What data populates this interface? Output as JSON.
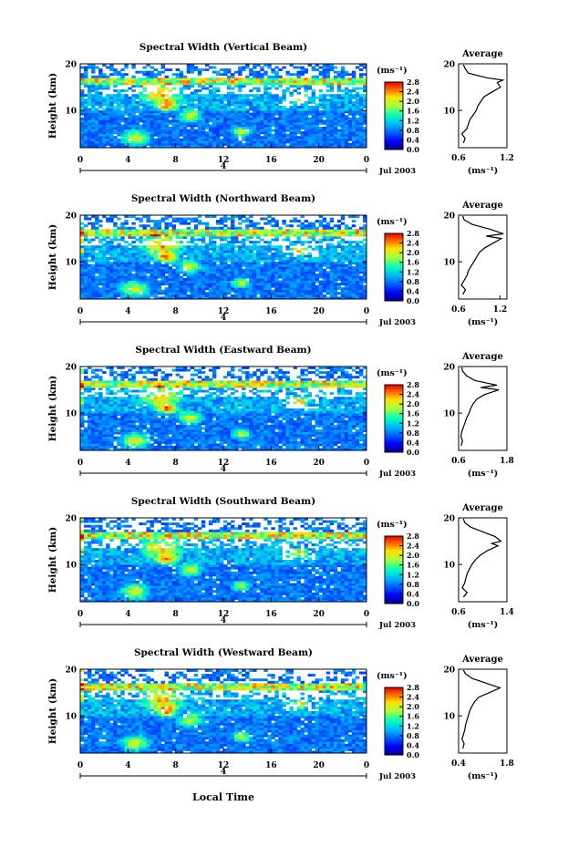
{
  "figure": {
    "xlabel": "Local Time",
    "date_label": "Jul 2003",
    "day_label": "4",
    "colorbar_unit": "(ms⁻¹)",
    "profile_title": "Average",
    "ylabel": "Height (km)"
  },
  "chart_data": [
    {
      "type": "heatmap",
      "title": "Spectral Width (Vertical Beam)",
      "xlabel": "Local Time",
      "ylabel": "Height (km)",
      "xlim": [
        0,
        24
      ],
      "ylim": [
        2,
        20
      ],
      "xticks": [
        "0",
        "4",
        "8",
        "12",
        "16",
        "20",
        "0"
      ],
      "yticks": [
        "10",
        "20"
      ],
      "colorbar": {
        "unit": "(ms⁻¹)",
        "ticks": [
          "0.0",
          "0.4",
          "0.8",
          "1.2",
          "1.6",
          "2.0",
          "2.4",
          "2.8"
        ],
        "range": [
          0,
          2.8
        ]
      },
      "profile": {
        "title": "Average",
        "xlabel": "(ms⁻¹)",
        "xlim": [
          0.6,
          1.2
        ],
        "xticks": [
          "0.6",
          "1.2"
        ],
        "points": [
          [
            0.66,
            3
          ],
          [
            0.68,
            4
          ],
          [
            0.64,
            5
          ],
          [
            0.7,
            6
          ],
          [
            0.72,
            7
          ],
          [
            0.74,
            8
          ],
          [
            0.78,
            9
          ],
          [
            0.82,
            10
          ],
          [
            0.84,
            11
          ],
          [
            0.88,
            12
          ],
          [
            0.92,
            13
          ],
          [
            1.02,
            14
          ],
          [
            1.12,
            15
          ],
          [
            1.08,
            16
          ],
          [
            1.15,
            16.5
          ],
          [
            0.95,
            17
          ],
          [
            0.72,
            18
          ],
          [
            0.68,
            19
          ],
          [
            0.66,
            19.8
          ]
        ]
      }
    },
    {
      "type": "heatmap",
      "title": "Spectral Width (Northward Beam)",
      "xlabel": "Local Time",
      "ylabel": "Height (km)",
      "xlim": [
        0,
        24
      ],
      "ylim": [
        2,
        20
      ],
      "xticks": [
        "0",
        "4",
        "8",
        "12",
        "16",
        "20",
        "0"
      ],
      "yticks": [
        "10",
        "20"
      ],
      "colorbar": {
        "unit": "(ms⁻¹)",
        "ticks": [
          "0.0",
          "0.4",
          "0.8",
          "1.2",
          "1.6",
          "2.0",
          "2.4",
          "2.8"
        ],
        "range": [
          0,
          2.8
        ]
      },
      "profile": {
        "title": "Average",
        "xlabel": "(ms⁻¹)",
        "xlim": [
          0.6,
          1.3
        ],
        "xticks": [
          "0.6",
          "1.2"
        ],
        "points": [
          [
            0.66,
            3
          ],
          [
            0.7,
            4
          ],
          [
            0.64,
            5
          ],
          [
            0.68,
            6
          ],
          [
            0.72,
            7
          ],
          [
            0.74,
            8
          ],
          [
            0.78,
            9
          ],
          [
            0.82,
            10
          ],
          [
            0.86,
            11
          ],
          [
            0.9,
            12
          ],
          [
            0.98,
            13
          ],
          [
            1.1,
            14
          ],
          [
            1.22,
            15
          ],
          [
            1.0,
            15.5
          ],
          [
            1.25,
            16
          ],
          [
            1.05,
            17
          ],
          [
            0.8,
            18
          ],
          [
            0.68,
            19
          ],
          [
            0.66,
            19.8
          ]
        ]
      }
    },
    {
      "type": "heatmap",
      "title": "Spectral Width (Eastward Beam)",
      "xlabel": "Local Time",
      "ylabel": "Height (km)",
      "xlim": [
        0,
        24
      ],
      "ylim": [
        2,
        20
      ],
      "xticks": [
        "0",
        "4",
        "8",
        "12",
        "16",
        "20",
        "0"
      ],
      "yticks": [
        "10",
        "20"
      ],
      "colorbar": {
        "unit": "(ms⁻¹)",
        "ticks": [
          "0.0",
          "0.4",
          "0.8",
          "1.2",
          "1.6",
          "2.0",
          "2.4",
          "2.8"
        ],
        "range": [
          0,
          2.8
        ]
      },
      "profile": {
        "title": "Average",
        "xlabel": "(ms⁻¹)",
        "xlim": [
          0.6,
          1.8
        ],
        "xticks": [
          "0.6",
          "1.8"
        ],
        "points": [
          [
            0.66,
            3
          ],
          [
            0.7,
            4
          ],
          [
            0.66,
            5
          ],
          [
            0.68,
            6
          ],
          [
            0.72,
            7
          ],
          [
            0.76,
            8
          ],
          [
            0.8,
            9
          ],
          [
            0.86,
            10
          ],
          [
            0.9,
            11
          ],
          [
            0.96,
            12
          ],
          [
            1.05,
            13
          ],
          [
            1.25,
            14
          ],
          [
            1.6,
            15
          ],
          [
            1.15,
            15.5
          ],
          [
            1.55,
            16
          ],
          [
            1.0,
            17
          ],
          [
            0.8,
            18
          ],
          [
            0.7,
            19
          ],
          [
            0.68,
            19.8
          ]
        ]
      }
    },
    {
      "type": "heatmap",
      "title": "Spectral Width (Southward Beam)",
      "xlabel": "Local Time",
      "ylabel": "Height (km)",
      "xlim": [
        0,
        24
      ],
      "ylim": [
        2,
        20
      ],
      "xticks": [
        "0",
        "4",
        "8",
        "12",
        "16",
        "20",
        "0"
      ],
      "yticks": [
        "10",
        "20"
      ],
      "colorbar": {
        "unit": "(ms⁻¹)",
        "ticks": [
          "0.0",
          "0.4",
          "0.8",
          "1.2",
          "1.6",
          "2.0",
          "2.4",
          "2.8"
        ],
        "range": [
          0,
          2.8
        ]
      },
      "profile": {
        "title": "Average",
        "xlabel": "(ms⁻¹)",
        "xlim": [
          0.6,
          1.4
        ],
        "xticks": [
          "0.6",
          "1.4"
        ],
        "points": [
          [
            0.68,
            3
          ],
          [
            0.74,
            4
          ],
          [
            0.66,
            5
          ],
          [
            0.7,
            6
          ],
          [
            0.72,
            7
          ],
          [
            0.74,
            8
          ],
          [
            0.78,
            9
          ],
          [
            0.82,
            10
          ],
          [
            0.88,
            11
          ],
          [
            0.96,
            12
          ],
          [
            1.08,
            13
          ],
          [
            1.25,
            14
          ],
          [
            1.15,
            14.5
          ],
          [
            1.3,
            15
          ],
          [
            1.2,
            16
          ],
          [
            1.0,
            17
          ],
          [
            0.8,
            18
          ],
          [
            0.7,
            19
          ],
          [
            0.68,
            19.8
          ]
        ]
      }
    },
    {
      "type": "heatmap",
      "title": "Spectral Width (Westward Beam)",
      "xlabel": "Local Time",
      "ylabel": "Height (km)",
      "xlim": [
        0,
        24
      ],
      "ylim": [
        2,
        20
      ],
      "xticks": [
        "0",
        "4",
        "8",
        "12",
        "16",
        "20",
        "0"
      ],
      "yticks": [
        "10",
        "20"
      ],
      "colorbar": {
        "unit": "(ms⁻¹)",
        "ticks": [
          "0.0",
          "0.4",
          "0.8",
          "1.2",
          "1.6",
          "2.0",
          "2.4",
          "2.8"
        ],
        "range": [
          0,
          2.8
        ]
      },
      "profile": {
        "title": "Average",
        "xlabel": "(ms⁻¹)",
        "xlim": [
          0.4,
          1.8
        ],
        "xticks": [
          "0.4",
          "1.8"
        ],
        "points": [
          [
            0.52,
            3
          ],
          [
            0.56,
            4
          ],
          [
            0.5,
            5
          ],
          [
            0.54,
            6
          ],
          [
            0.58,
            7
          ],
          [
            0.6,
            8
          ],
          [
            0.64,
            9
          ],
          [
            0.68,
            10
          ],
          [
            0.72,
            11
          ],
          [
            0.78,
            12
          ],
          [
            0.86,
            13
          ],
          [
            0.98,
            14
          ],
          [
            1.3,
            15
          ],
          [
            1.6,
            16
          ],
          [
            1.2,
            17
          ],
          [
            0.8,
            18
          ],
          [
            0.6,
            19
          ],
          [
            0.54,
            19.8
          ]
        ]
      }
    }
  ]
}
